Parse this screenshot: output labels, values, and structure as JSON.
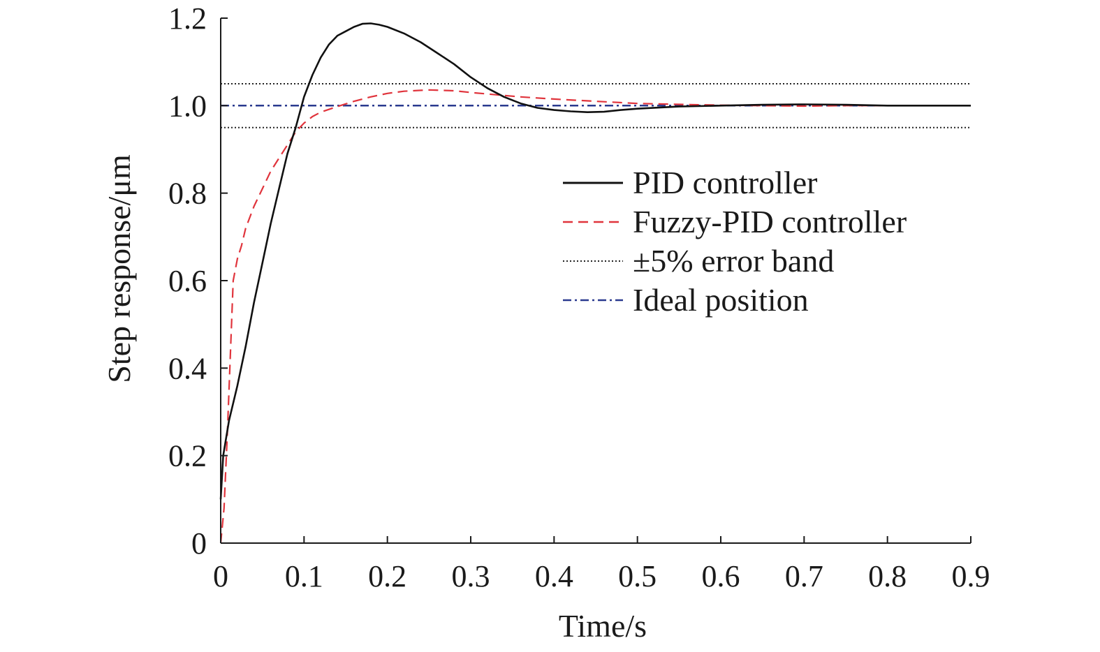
{
  "chart_data": {
    "type": "line",
    "title": "",
    "xlabel": "Time/s",
    "ylabel": "Step response/μm",
    "xlim": [
      0,
      0.9
    ],
    "ylim": [
      0,
      1.2
    ],
    "xticks": [
      0,
      0.1,
      0.2,
      0.3,
      0.4,
      0.5,
      0.6,
      0.7,
      0.8,
      0.9
    ],
    "xtick_labels": [
      "0",
      "0.1",
      "0.2",
      "0.3",
      "0.4",
      "0.5",
      "0.6",
      "0.7",
      "0.8",
      "0.9"
    ],
    "yticks": [
      0,
      0.2,
      0.4,
      0.6,
      0.8,
      1.0,
      1.2
    ],
    "ytick_labels": [
      "0",
      "0.2",
      "0.4",
      "0.6",
      "0.8",
      "1.0",
      "1.2"
    ],
    "grid": false,
    "legend_position": "center-right",
    "series": [
      {
        "name": "PID controller",
        "color": "#111111",
        "style": "solid",
        "x": [
          0,
          0.003,
          0.01,
          0.02,
          0.03,
          0.04,
          0.05,
          0.06,
          0.07,
          0.08,
          0.09,
          0.1,
          0.11,
          0.12,
          0.13,
          0.14,
          0.15,
          0.16,
          0.17,
          0.18,
          0.19,
          0.2,
          0.22,
          0.24,
          0.26,
          0.28,
          0.3,
          0.32,
          0.34,
          0.36,
          0.38,
          0.4,
          0.42,
          0.44,
          0.46,
          0.48,
          0.5,
          0.55,
          0.6,
          0.65,
          0.7,
          0.75,
          0.8,
          0.85,
          0.9
        ],
        "values": [
          0.1,
          0.2,
          0.28,
          0.36,
          0.45,
          0.55,
          0.64,
          0.73,
          0.81,
          0.89,
          0.95,
          1.02,
          1.07,
          1.11,
          1.14,
          1.16,
          1.17,
          1.18,
          1.187,
          1.188,
          1.185,
          1.18,
          1.165,
          1.145,
          1.12,
          1.095,
          1.065,
          1.04,
          1.02,
          1.005,
          0.995,
          0.99,
          0.987,
          0.985,
          0.986,
          0.99,
          0.993,
          0.998,
          1.0,
          1.002,
          1.003,
          1.002,
          1.0,
          1.0,
          1.0
        ]
      },
      {
        "name": "Fuzzy-PID controller",
        "color": "#e0343c",
        "style": "dashed",
        "x": [
          0,
          0.004,
          0.008,
          0.012,
          0.015,
          0.02,
          0.025,
          0.03,
          0.04,
          0.05,
          0.06,
          0.07,
          0.08,
          0.09,
          0.1,
          0.11,
          0.12,
          0.14,
          0.16,
          0.18,
          0.2,
          0.22,
          0.25,
          0.28,
          0.3,
          0.33,
          0.36,
          0.4,
          0.45,
          0.5,
          0.55,
          0.6,
          0.65,
          0.7,
          0.75,
          0.8,
          0.85,
          0.9
        ],
        "values": [
          0,
          0.08,
          0.25,
          0.45,
          0.6,
          0.65,
          0.68,
          0.72,
          0.77,
          0.81,
          0.85,
          0.88,
          0.91,
          0.94,
          0.96,
          0.975,
          0.985,
          0.998,
          1.01,
          1.02,
          1.028,
          1.033,
          1.036,
          1.034,
          1.03,
          1.025,
          1.02,
          1.015,
          1.01,
          1.005,
          1.003,
          1.001,
          1.0,
          0.999,
          1.0,
          1.0,
          1.0,
          1.0
        ]
      },
      {
        "name": "±5% error band",
        "color": "#222222",
        "style": "dotted",
        "x": [
          0,
          0.9
        ],
        "values": [
          1.05,
          1.05
        ],
        "lower_values": [
          0.95,
          0.95
        ]
      },
      {
        "name": "Ideal position",
        "color": "#2a3a8f",
        "style": "dashdot",
        "x": [
          0,
          0.9
        ],
        "values": [
          1.0,
          1.0
        ]
      }
    ]
  }
}
